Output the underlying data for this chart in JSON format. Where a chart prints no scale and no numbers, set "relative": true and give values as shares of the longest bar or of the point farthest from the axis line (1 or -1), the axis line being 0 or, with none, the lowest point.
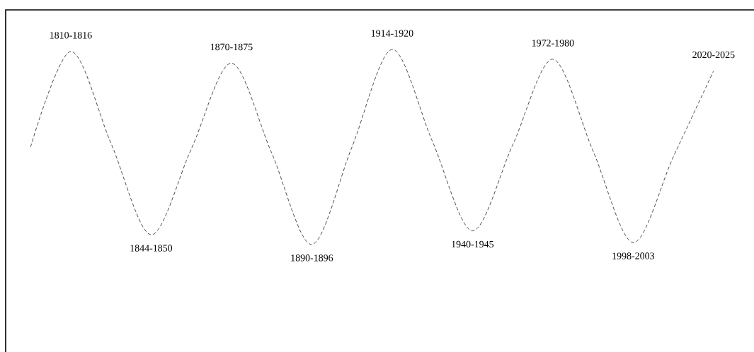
{
  "chart_data": {
    "type": "line",
    "relative": true,
    "line_style": "dashed",
    "marker": "none",
    "tick_labels": false,
    "categories": [
      null,
      "1810-1816",
      null,
      "1844-1850",
      null,
      "1870-1875",
      null,
      "1890-1896",
      null,
      "1914-1920",
      null,
      "1940-1945",
      null,
      "1972-1980",
      null,
      "1998-2003",
      null,
      "2020-2025"
    ],
    "series": [
      {
        "color": "#000000",
        "values": [
          0.5,
          0.99,
          0.52,
          0.05,
          0.49,
          0.93,
          0.47,
          0,
          0.5,
          1,
          0.53,
          0.07,
          0.51,
          0.95,
          0.48,
          0.01,
          0.45,
          0.89
        ]
      }
    ]
  }
}
